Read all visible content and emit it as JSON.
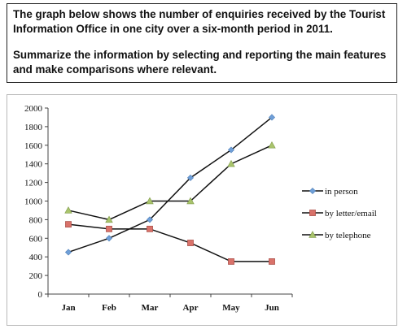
{
  "prompt": {
    "lines": [
      "The graph below shows the number of enquiries received by the Tourist",
      "Information Office in one city over a six-month period in 2011.",
      "Summarize the information by selecting and reporting the main features",
      "and make comparisons where relevant."
    ]
  },
  "chart_data": {
    "type": "line",
    "title": "",
    "xlabel": "",
    "ylabel": "",
    "categories": [
      "Jan",
      "Feb",
      "Mar",
      "Apr",
      "May",
      "Jun"
    ],
    "ylim": [
      0,
      2000
    ],
    "yticks": [
      0,
      200,
      400,
      600,
      800,
      1000,
      1200,
      1400,
      1600,
      1800,
      2000
    ],
    "grid": false,
    "legend_position": "right",
    "series": [
      {
        "name": "in person",
        "marker": "diamond",
        "color": "#6f9fd8",
        "values": [
          450,
          600,
          800,
          1250,
          1550,
          1900
        ]
      },
      {
        "name": "by letter/email",
        "marker": "square",
        "color": "#d9726a",
        "values": [
          750,
          700,
          700,
          550,
          350,
          350
        ]
      },
      {
        "name": "by telephone",
        "marker": "triangle",
        "color": "#a9c46c",
        "values": [
          900,
          800,
          1000,
          1000,
          1400,
          1600
        ]
      }
    ]
  }
}
